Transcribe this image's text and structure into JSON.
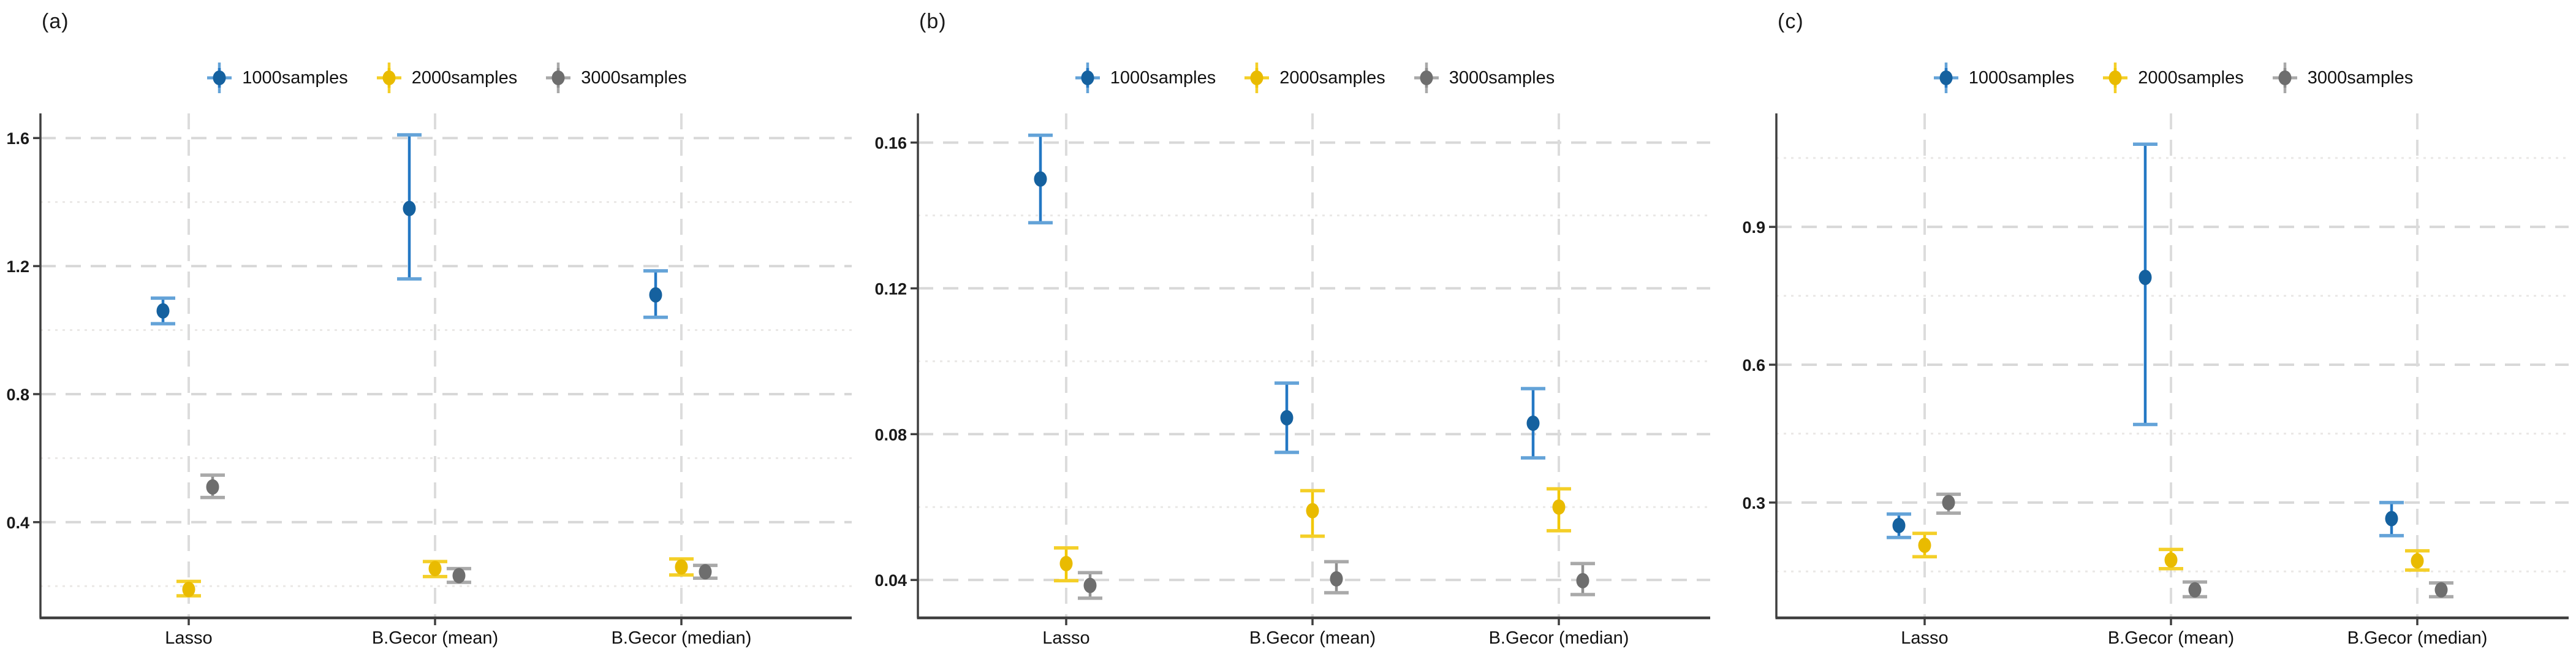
{
  "figure": {
    "background": "#ffffff"
  },
  "colors": {
    "1000samples": {
      "point": "#15619f",
      "line": "#2478c4",
      "cap": "#64a3d8"
    },
    "2000samples": {
      "point": "#e9bb00",
      "line": "#f2c701",
      "cap": "#f4cf28"
    },
    "3000samples": {
      "point": "#6e6e6e",
      "line": "#8f8f8f",
      "cap": "#a9a9a9"
    }
  },
  "grid": {
    "major_color": "#d8d8d8",
    "minor_color": "#eae8e6",
    "vline_color": "#dcdcdc",
    "spine_color": "#3f3f3f",
    "tick_color": "#3f3f3f"
  },
  "legend": {
    "items": [
      "1000samples",
      "2000samples",
      "3000samples"
    ]
  },
  "chart_data": [
    {
      "type": "pointrange",
      "title": "(a)",
      "categories": [
        "Lasso",
        "B.Gecor (mean)",
        "B.Gecor (median)"
      ],
      "yticks": [
        0.4,
        0.8,
        1.2,
        1.6
      ],
      "ytick_labels": [
        "0.4",
        "0.8",
        "1.2",
        "1.6"
      ],
      "minor_yticks": [
        0.2,
        0.6,
        1.0,
        1.4
      ],
      "ylim": [
        0.101,
        1.677
      ],
      "grid": "major dashed + minor dotted, horizontal; dashed vertical line at each category",
      "legend_position": "top center",
      "series": [
        {
          "name": "1000samples",
          "values": [
            1.06,
            1.38,
            1.11
          ],
          "ci_low": [
            1.02,
            1.16,
            1.04
          ],
          "ci_high": [
            1.1,
            1.61,
            1.185
          ]
        },
        {
          "name": "2000samples",
          "values": [
            0.19,
            0.255,
            0.26
          ],
          "ci_low": [
            0.17,
            0.23,
            0.235
          ],
          "ci_high": [
            0.215,
            0.277,
            0.285
          ]
        },
        {
          "name": "3000samples",
          "values": [
            0.51,
            0.233,
            0.245
          ],
          "ci_low": [
            0.477,
            0.212,
            0.225
          ],
          "ci_high": [
            0.547,
            0.255,
            0.265
          ]
        }
      ]
    },
    {
      "type": "pointrange",
      "title": "(b)",
      "categories": [
        "Lasso",
        "B.Gecor (mean)",
        "B.Gecor (median)"
      ],
      "yticks": [
        0.04,
        0.08,
        0.12,
        0.16
      ],
      "ytick_labels": [
        "0.04",
        "0.08",
        "0.12",
        "0.16"
      ],
      "minor_yticks": [
        0.06,
        0.1,
        0.14
      ],
      "ylim": [
        0.0296,
        0.168
      ],
      "grid": "major dashed + minor dotted, horizontal; dashed vertical line at each category",
      "legend_position": "top center",
      "series": [
        {
          "name": "1000samples",
          "values": [
            0.15,
            0.0845,
            0.083
          ],
          "ci_low": [
            0.138,
            0.075,
            0.0735
          ],
          "ci_high": [
            0.162,
            0.094,
            0.0925
          ]
        },
        {
          "name": "2000samples",
          "values": [
            0.0445,
            0.059,
            0.06
          ],
          "ci_low": [
            0.0398,
            0.052,
            0.0535
          ],
          "ci_high": [
            0.0488,
            0.0645,
            0.065
          ]
        },
        {
          "name": "3000samples",
          "values": [
            0.0385,
            0.0403,
            0.0398
          ],
          "ci_low": [
            0.035,
            0.0365,
            0.036
          ],
          "ci_high": [
            0.042,
            0.045,
            0.0445
          ]
        }
      ]
    },
    {
      "type": "pointrange",
      "title": "(c)",
      "categories": [
        "Lasso",
        "B.Gecor (mean)",
        "B.Gecor (median)"
      ],
      "yticks": [
        0.3,
        0.6,
        0.9
      ],
      "ytick_labels": [
        "0.3",
        "0.6",
        "0.9"
      ],
      "minor_yticks": [
        0.15,
        0.45,
        0.75,
        1.05
      ],
      "ylim": [
        0.049,
        1.147
      ],
      "grid": "major dashed + minor dotted, horizontal; dashed vertical line at each category",
      "legend_position": "top center",
      "series": [
        {
          "name": "1000samples",
          "values": [
            0.25,
            0.79,
            0.265
          ],
          "ci_low": [
            0.224,
            0.47,
            0.228
          ],
          "ci_high": [
            0.275,
            1.08,
            0.3
          ]
        },
        {
          "name": "2000samples",
          "values": [
            0.207,
            0.175,
            0.173
          ],
          "ci_low": [
            0.182,
            0.156,
            0.153
          ],
          "ci_high": [
            0.233,
            0.198,
            0.195
          ]
        },
        {
          "name": "3000samples",
          "values": [
            0.3,
            0.11,
            0.11
          ],
          "ci_low": [
            0.277,
            0.095,
            0.095
          ],
          "ci_high": [
            0.318,
            0.127,
            0.125
          ]
        }
      ]
    }
  ]
}
